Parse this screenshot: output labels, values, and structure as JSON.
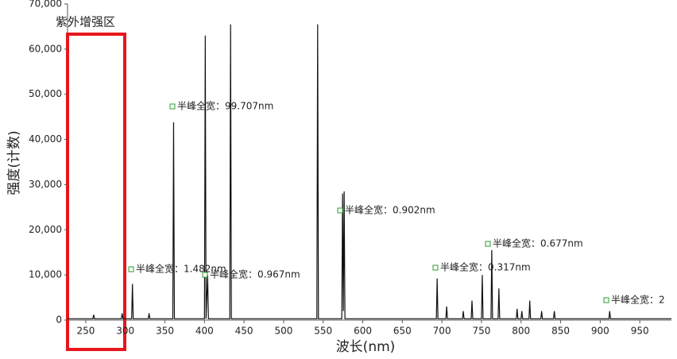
{
  "chart_data": {
    "type": "line",
    "ylabel": "强度(计数)",
    "xlabel": "波长(nm)",
    "region_label": "紫外增强区",
    "annotations": [
      "半峰全宽：99.707nm",
      "半峰全宽：1.482nm",
      "半峰全宽：0.967nm",
      "半峰全宽：0.902nm",
      "半峰全宽：0.317nm",
      "半峰全宽：0.677nm",
      "半峰全宽：2"
    ],
    "color": "#111111",
    "x": [
      227,
      259,
      260,
      261,
      295,
      296,
      297,
      308,
      309,
      310,
      329,
      330,
      331,
      360,
      361,
      362,
      400,
      401,
      402,
      404,
      405,
      432,
      433,
      434,
      542,
      543,
      544,
      573.5,
      574.5,
      575.5,
      576.5,
      577.5,
      693,
      694,
      695,
      705,
      706,
      707,
      726,
      727,
      728,
      737,
      738,
      739,
      750,
      751,
      752,
      762,
      763,
      764,
      771,
      772,
      773,
      794,
      795,
      796,
      800,
      801,
      802,
      810,
      811,
      812,
      825,
      826,
      827,
      841,
      842,
      843,
      911,
      912,
      913,
      990
    ],
    "values": [
      300,
      300,
      1200,
      300,
      300,
      1500,
      300,
      300,
      8000,
      300,
      300,
      1500,
      300,
      300,
      43800,
      300,
      300,
      63000,
      300,
      10000,
      300,
      300,
      65500,
      300,
      300,
      65500,
      300,
      300,
      28000,
      2000,
      28500,
      300,
      300,
      9200,
      300,
      300,
      3000,
      300,
      300,
      2000,
      300,
      300,
      4300,
      300,
      300,
      10000,
      300,
      300,
      15500,
      300,
      300,
      7000,
      300,
      300,
      2500,
      300,
      300,
      2000,
      300,
      300,
      4300,
      300,
      300,
      2000,
      300,
      300,
      2000,
      300,
      300,
      2000,
      300,
      300
    ],
    "xlim": [
      227,
      990
    ],
    "ylim": [
      0,
      70000
    ],
    "xticks": [
      250,
      300,
      350,
      400,
      450,
      500,
      550,
      600,
      650,
      700,
      750,
      800,
      850,
      900,
      950
    ],
    "yticks": [
      0,
      {
        "value": 10000,
        "label": "10,000"
      },
      {
        "value": 20000,
        "label": "20,000"
      },
      {
        "value": 30000,
        "label": "30,000"
      },
      {
        "value": 40000,
        "label": "40,000"
      },
      {
        "value": 50000,
        "label": "50,000"
      },
      {
        "value": 60000,
        "label": "60,000"
      },
      {
        "value": 70000,
        "label": "70,000"
      }
    ]
  }
}
